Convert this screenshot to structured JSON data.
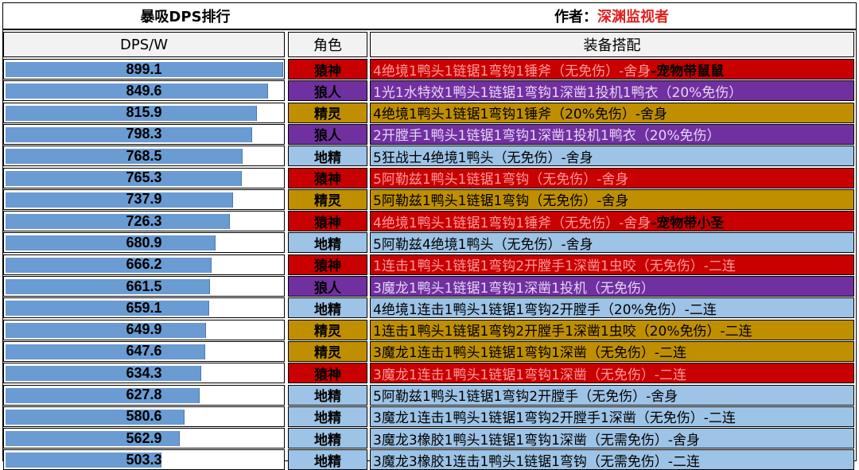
{
  "title": "暴吸DPS排行",
  "author_label": "作者：",
  "author_name": "深渊监视者",
  "headers": {
    "dps": "DPS/W",
    "role": "角色",
    "build": "装备搭配"
  },
  "role_colors": {
    "猿神": {
      "bg": "#c80000",
      "text": "#ff9999"
    },
    "狼人": {
      "bg": "#7030a0",
      "text": "#e6d2f5"
    },
    "精灵": {
      "bg": "#bf8f00",
      "text": "#000000"
    },
    "地精": {
      "bg": "#9dc3e6",
      "text": "#000000"
    }
  },
  "chart_data": {
    "type": "bar",
    "orientation": "horizontal",
    "categories": [
      "猿神",
      "狼人",
      "精灵",
      "狼人",
      "地精",
      "猿神",
      "精灵",
      "猿神",
      "地精",
      "猿神",
      "狼人",
      "地精",
      "精灵",
      "精灵",
      "猿神",
      "地精",
      "地精",
      "地精",
      "地精"
    ],
    "values": [
      899.1,
      849.6,
      815.9,
      798.3,
      768.5,
      765.3,
      737.9,
      726.3,
      680.9,
      666.2,
      661.5,
      659.1,
      649.9,
      647.6,
      634.3,
      627.8,
      580.6,
      562.9,
      503.3
    ],
    "xlim": [
      0,
      900
    ],
    "title": "",
    "xlabel": "DPS/W",
    "ylabel": ""
  },
  "rows": [
    {
      "dps": "899.1",
      "role": "猿神",
      "build": "4绝境1鸭头1链锯1弯钩1锤斧（无免伤）-舍身",
      "extra": "-宠物带鼠鼠"
    },
    {
      "dps": "849.6",
      "role": "狼人",
      "build": "1光1水特效1鸭头1链锯1弯钩1深凿1投机1鸭衣（20%免伤）",
      "extra": ""
    },
    {
      "dps": "815.9",
      "role": "精灵",
      "build": "4绝境1鸭头1链锯1弯钩1锤斧（20%免伤）-舍身",
      "extra": ""
    },
    {
      "dps": "798.3",
      "role": "狼人",
      "build": "2开膛手1鸭头1链锯1弯钩1深凿1投机1鸭衣（20%免伤）",
      "extra": ""
    },
    {
      "dps": "768.5",
      "role": "地精",
      "build": "5狂战士4绝境1鸭头（无免伤）-舍身",
      "extra": ""
    },
    {
      "dps": "765.3",
      "role": "猿神",
      "build": "5阿勒兹1鸭头1链锯1弯钩（无免伤）-舍身",
      "extra": ""
    },
    {
      "dps": "737.9",
      "role": "精灵",
      "build": "5阿勒兹1鸭头1链锯1弯钩（无免伤）-舍身",
      "extra": ""
    },
    {
      "dps": "726.3",
      "role": "猿神",
      "build": "4绝境1鸭头1链锯1弯钩1锤斧（无免伤）-舍身",
      "extra": "-宠物带小圣"
    },
    {
      "dps": "680.9",
      "role": "地精",
      "build": "5阿勒兹4绝境1鸭头（无免伤）-舍身",
      "extra": ""
    },
    {
      "dps": "666.2",
      "role": "猿神",
      "build": "1连击1鸭头1链锯1弯钩2开膛手1深凿1虫咬（无免伤）-二连",
      "extra": ""
    },
    {
      "dps": "661.5",
      "role": "狼人",
      "build": "3魔龙1鸭头1链锯1弯钩1深凿1投机（无免伤）",
      "extra": ""
    },
    {
      "dps": "659.1",
      "role": "地精",
      "build": "4绝境1连击1鸭头1链锯1弯钩2开膛手（20%免伤）-二连",
      "extra": ""
    },
    {
      "dps": "649.9",
      "role": "精灵",
      "build": "1连击1鸭头1链锯1弯钩2开膛手1深凿1虫咬（20%免伤）-二连",
      "extra": ""
    },
    {
      "dps": "647.6",
      "role": "精灵",
      "build": "3魔龙1连击1鸭头1链锯1弯钩1深凿（无免伤）-二连",
      "extra": ""
    },
    {
      "dps": "634.3",
      "role": "猿神",
      "build": "3魔龙1连击1鸭头1链锯1弯钩1深凿（无免伤）-二连",
      "extra": ""
    },
    {
      "dps": "627.8",
      "role": "地精",
      "build": "5阿勒兹1鸭头1链锯1弯钩2开膛手（无免伤）-舍身",
      "extra": ""
    },
    {
      "dps": "580.6",
      "role": "地精",
      "build": "3魔龙1连击1鸭头1链锯1弯钩2开膛手1深凿（无免伤）-二连",
      "extra": ""
    },
    {
      "dps": "562.9",
      "role": "地精",
      "build": "3魔龙3橡胶1鸭头1链锯1弯钩1深凿（无需免伤）-舍身",
      "extra": ""
    },
    {
      "dps": "503.3",
      "role": "地精",
      "build": "3魔龙3橡胶1连击1鸭头1链锯1弯钩（无需免伤）-二连",
      "extra": ""
    }
  ]
}
